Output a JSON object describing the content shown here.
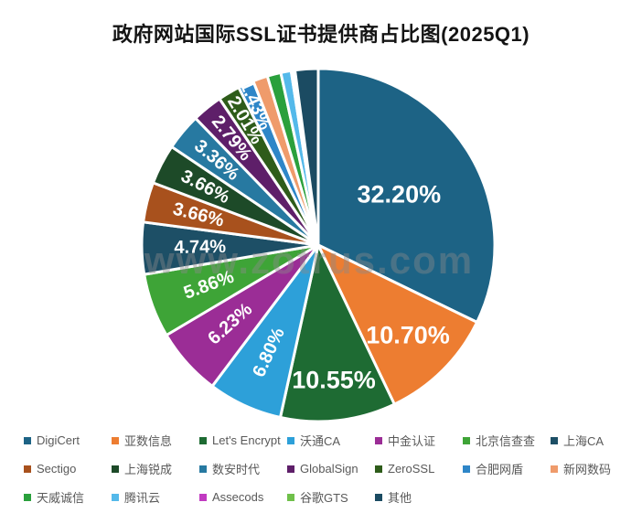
{
  "title": "政府网站国际SSL证书提供商占比图(2025Q1)",
  "watermark": "www.zotrus.com",
  "chart_data": {
    "type": "pie",
    "title": "政府网站国际SSL证书提供商占比图(2025Q1)",
    "legend_position": "bottom",
    "start_angle_deg_clockwise_from_top": 0,
    "center": [
      348,
      268
    ],
    "radius": 193,
    "series": [
      {
        "name": "DigiCert",
        "value": 32.2,
        "label": "32.20%",
        "label_show": true,
        "color": "#1d6385",
        "label_r": 0.54,
        "label_rotate": 0
      },
      {
        "name": "亚数信息",
        "value": 10.7,
        "label": "10.70%",
        "label_show": true,
        "color": "#ed7d31",
        "label_r": 0.72,
        "label_rotate": 0
      },
      {
        "name": "Let's Encrypt",
        "value": 10.55,
        "label": "10.55%",
        "label_show": true,
        "color": "#1e6b33",
        "label_r": 0.77,
        "label_rotate": 0
      },
      {
        "name": "沃通CA",
        "value": 6.8,
        "label": "6.80%",
        "label_show": true,
        "color": "#2da0d9",
        "label_r": 0.67,
        "label_rotate": null
      },
      {
        "name": "中金认证",
        "value": 6.23,
        "label": "6.23%",
        "label_show": true,
        "color": "#9b2d96",
        "label_r": 0.67,
        "label_rotate": null
      },
      {
        "name": "北京信查查",
        "value": 5.86,
        "label": "5.86%",
        "label_show": true,
        "color": "#3ea437",
        "label_r": 0.66,
        "label_rotate": null
      },
      {
        "name": "上海CA",
        "value": 4.74,
        "label": "4.74%",
        "label_show": true,
        "color": "#1d4f66",
        "label_r": 0.67,
        "label_rotate": null
      },
      {
        "name": "Sectigo",
        "value": 3.66,
        "label": "3.66%",
        "label_show": true,
        "color": "#a8511d",
        "label_r": 0.7,
        "label_rotate": null
      },
      {
        "name": "上海锐成",
        "value": 3.66,
        "label": "3.66%",
        "label_show": true,
        "color": "#1d4a28",
        "label_r": 0.72,
        "label_rotate": null
      },
      {
        "name": "数安时代",
        "value": 3.36,
        "label": "3.36%",
        "label_show": true,
        "color": "#2779a1",
        "label_r": 0.75,
        "label_rotate": null
      },
      {
        "name": "GlobalSign",
        "value": 2.79,
        "label": "2.79%",
        "label_show": true,
        "color": "#5e1f69",
        "label_r": 0.78,
        "label_rotate": null
      },
      {
        "name": "ZeroSSL",
        "value": 2.01,
        "label": "2.01%",
        "label_show": true,
        "color": "#2e5c1a",
        "label_r": 0.82,
        "label_rotate": null
      },
      {
        "name": "合肥网盾",
        "value": 1.43,
        "label": "1.43%",
        "label_show": true,
        "color": "#2e86c8",
        "label_r": 0.87,
        "label_rotate": null
      },
      {
        "name": "新网数码",
        "value": 1.35,
        "label_show": false,
        "color": "#ef9b6b"
      },
      {
        "name": "天威诚信",
        "value": 1.25,
        "label_show": false,
        "color": "#2aa03c"
      },
      {
        "name": "腾讯云",
        "value": 0.95,
        "label_show": false,
        "color": "#54b9ea"
      },
      {
        "name": "Assecods",
        "value": 0.25,
        "label_show": false,
        "color": "#c13ac1"
      },
      {
        "name": "谷歌GTS",
        "value": 0.1,
        "label_show": false,
        "color": "#6fc04a"
      },
      {
        "name": "其他",
        "value": 2.11,
        "label_show": false,
        "color": "#1b4b62"
      }
    ]
  }
}
